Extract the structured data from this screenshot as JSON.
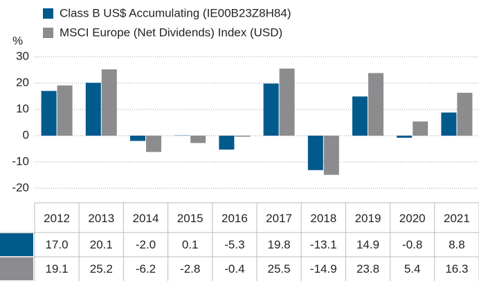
{
  "chart_data": {
    "type": "bar",
    "y_label": "%",
    "categories": [
      "2012",
      "2013",
      "2014",
      "2015",
      "2016",
      "2017",
      "2018",
      "2019",
      "2020",
      "2021"
    ],
    "series": [
      {
        "name": "Class B US$ Accumulating (IE00B23Z8H84)",
        "color": "#005a8c",
        "values": [
          17.0,
          20.1,
          -2.0,
          0.1,
          -5.3,
          19.8,
          -13.1,
          14.9,
          -0.8,
          8.8
        ],
        "value_labels": [
          "17.0",
          "20.1",
          "-2.0",
          "0.1",
          "-5.3",
          "19.8",
          "-13.1",
          "14.9",
          "-0.8",
          "8.8"
        ]
      },
      {
        "name": "MSCI Europe (Net Dividends) Index (USD)",
        "color": "#8c8c8e",
        "values": [
          19.1,
          25.2,
          -6.2,
          -2.8,
          -0.4,
          25.5,
          -14.9,
          23.8,
          5.4,
          16.3
        ],
        "value_labels": [
          "19.1",
          "25.2",
          "-6.2",
          "-2.8",
          "-0.4",
          "25.5",
          "-14.9",
          "23.8",
          "5.4",
          "16.3"
        ]
      }
    ],
    "ylim": [
      -20,
      30
    ],
    "yticks": [
      -20,
      -10,
      0,
      10,
      20,
      30
    ],
    "grid": true
  }
}
